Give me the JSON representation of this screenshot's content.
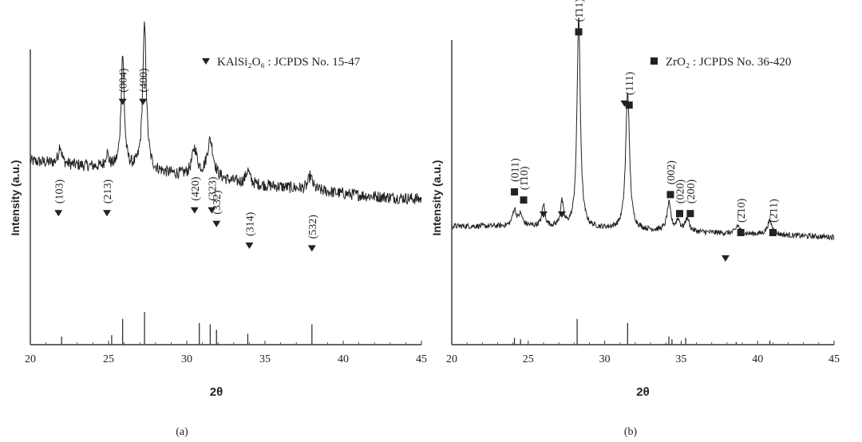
{
  "chart_data": [
    {
      "id": "a",
      "type": "line",
      "panel_label": "(a)",
      "xlabel": "2θ",
      "ylabel": "Intensity (a.u.)",
      "xlim": [
        20,
        45
      ],
      "xticks": [
        "20",
        "25",
        "30",
        "35",
        "40",
        "45"
      ],
      "legend": {
        "marker": "triangle-down",
        "text": "KAlSi₂O₆ : JCPDS No. 15-47",
        "placement": "top-right"
      },
      "baseline_y": [
        0.18,
        0.17,
        0.16,
        0.15,
        0.14,
        0.125,
        0.11,
        0.095,
        0.085,
        0.075,
        0.06,
        0.05,
        0.04
      ],
      "baseline_x": [
        20,
        22,
        24,
        26,
        28,
        30,
        32,
        34,
        36,
        38,
        40,
        42,
        45
      ],
      "peaks": [
        {
          "x": 21.9,
          "h": 0.07,
          "w": 0.12
        },
        {
          "x": 24.9,
          "h": 0.05,
          "w": 0.12
        },
        {
          "x": 25.9,
          "h": 0.42,
          "w": 0.12
        },
        {
          "x": 27.3,
          "h": 0.53,
          "w": 0.14
        },
        {
          "x": 30.5,
          "h": 0.1,
          "w": 0.2
        },
        {
          "x": 31.5,
          "h": 0.14,
          "w": 0.25
        },
        {
          "x": 33.9,
          "h": 0.05,
          "w": 0.15
        },
        {
          "x": 37.9,
          "h": 0.05,
          "w": 0.15
        }
      ],
      "reference_lines": [
        {
          "x": 22.0,
          "h": 0.06
        },
        {
          "x": 25.2,
          "h": 0.07
        },
        {
          "x": 25.9,
          "h": 0.19
        },
        {
          "x": 27.3,
          "h": 0.24
        },
        {
          "x": 30.8,
          "h": 0.16
        },
        {
          "x": 31.5,
          "h": 0.15
        },
        {
          "x": 31.9,
          "h": 0.11
        },
        {
          "x": 33.9,
          "h": 0.08
        },
        {
          "x": 38.0,
          "h": 0.15
        }
      ],
      "annotations": [
        {
          "label": "(103)",
          "x": 21.8,
          "y": 0.32
        },
        {
          "label": "(213)",
          "x": 24.9,
          "y": 0.32
        },
        {
          "label": "(004)",
          "x": 25.9,
          "y": 0.73
        },
        {
          "label": "(400)",
          "x": 27.2,
          "y": 0.73
        },
        {
          "label": "(420)",
          "x": 30.5,
          "y": 0.33
        },
        {
          "label": "(323)",
          "x": 31.6,
          "y": 0.33
        },
        {
          "label": "(332)",
          "x": 31.9,
          "y": 0.28
        },
        {
          "label": "(314)",
          "x": 34.0,
          "y": 0.2
        },
        {
          "label": "(532)",
          "x": 38.0,
          "y": 0.19
        }
      ]
    },
    {
      "id": "b",
      "type": "line",
      "panel_label": "(b)",
      "xlabel": "2θ",
      "ylabel": "Intensity (a.u.)",
      "xlim": [
        20,
        45
      ],
      "xticks": [
        "20",
        "25",
        "30",
        "35",
        "40",
        "45"
      ],
      "legend": {
        "marker": "square",
        "text": "ZrO₂ : JCPDS No. 36-420",
        "placement": "top-right"
      },
      "baseline_y": [
        0.11,
        0.11,
        0.1,
        0.09,
        0.08,
        0.07
      ],
      "baseline_x": [
        20,
        25,
        30,
        35,
        40,
        45
      ],
      "peaks": [
        {
          "x": 24.1,
          "h": 0.06,
          "w": 0.15
        },
        {
          "x": 24.5,
          "h": 0.04,
          "w": 0.15
        },
        {
          "x": 26.0,
          "h": 0.08,
          "w": 0.12
        },
        {
          "x": 27.2,
          "h": 0.09,
          "w": 0.12
        },
        {
          "x": 28.3,
          "h": 0.78,
          "w": 0.13
        },
        {
          "x": 31.5,
          "h": 0.51,
          "w": 0.15
        },
        {
          "x": 34.2,
          "h": 0.1,
          "w": 0.15
        },
        {
          "x": 34.8,
          "h": 0.04,
          "w": 0.15
        },
        {
          "x": 35.4,
          "h": 0.05,
          "w": 0.15
        },
        {
          "x": 38.7,
          "h": 0.03,
          "w": 0.15
        },
        {
          "x": 40.8,
          "h": 0.05,
          "w": 0.2
        }
      ],
      "reference_lines": [
        {
          "x": 24.1,
          "h": 0.05
        },
        {
          "x": 24.5,
          "h": 0.04
        },
        {
          "x": 28.2,
          "h": 0.19
        },
        {
          "x": 31.5,
          "h": 0.16
        },
        {
          "x": 34.2,
          "h": 0.06
        },
        {
          "x": 34.4,
          "h": 0.04
        },
        {
          "x": 35.3,
          "h": 0.05
        },
        {
          "x": 38.6,
          "h": 0.02
        },
        {
          "x": 40.8,
          "h": 0.03
        }
      ],
      "annotations": [
        {
          "label": "(011)",
          "x": 24.1,
          "y": 0.4
        },
        {
          "label": "(1̄10)",
          "x": 24.7,
          "y": 0.37
        },
        {
          "label": "(1̄11)",
          "x": 28.3,
          "y": 0.99
        },
        {
          "label": "(111)",
          "x": 31.6,
          "y": 0.72
        },
        {
          "label": "(002)",
          "x": 34.3,
          "y": 0.39
        },
        {
          "label": "(020)",
          "x": 34.9,
          "y": 0.32
        },
        {
          "label": "(200)",
          "x": 35.6,
          "y": 0.32
        },
        {
          "label": "(2̄10)",
          "x": 38.9,
          "y": 0.25
        },
        {
          "label": "(2̄11)",
          "x": 41.0,
          "y": 0.25
        }
      ],
      "triangle_markers_x": [
        26.0,
        27.2,
        31.3,
        37.9
      ]
    }
  ]
}
